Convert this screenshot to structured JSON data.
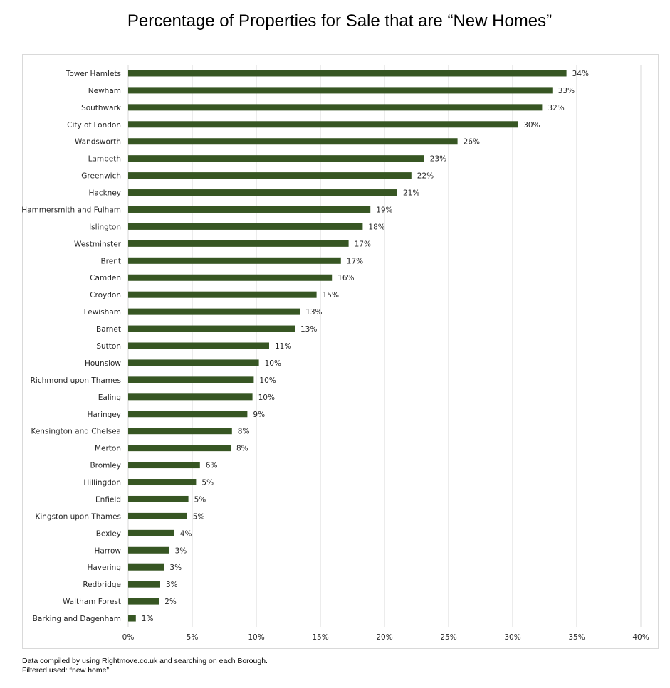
{
  "chart_data": {
    "type": "bar",
    "orientation": "horizontal",
    "title": "Percentage of Properties for Sale that are “New Homes”",
    "xlabel": "",
    "ylabel": "",
    "categories": [
      "Tower Hamlets",
      "Newham",
      "Southwark",
      "City of London",
      "Wandsworth",
      "Lambeth",
      "Greenwich",
      "Hackney",
      "Hammersmith and Fulham",
      "Islington",
      "Westminster",
      "Brent",
      "Camden",
      "Croydon",
      "Lewisham",
      "Barnet",
      "Sutton",
      "Hounslow",
      "Richmond upon Thames",
      "Ealing",
      "Haringey",
      "Kensington and Chelsea",
      "Merton",
      "Bromley",
      "Hillingdon",
      "Enfield",
      "Kingston upon Thames",
      "Bexley",
      "Harrow",
      "Havering",
      "Redbridge",
      "Waltham Forest",
      "Barking and Dagenham"
    ],
    "values": [
      34.2,
      33.1,
      32.3,
      30.4,
      25.7,
      23.1,
      22.1,
      21.0,
      18.9,
      18.3,
      17.2,
      16.6,
      15.9,
      14.7,
      13.4,
      13.0,
      11.0,
      10.2,
      9.8,
      9.7,
      9.3,
      8.1,
      8.0,
      5.6,
      5.3,
      4.7,
      4.6,
      3.6,
      3.2,
      2.8,
      2.5,
      2.4,
      0.6
    ],
    "value_labels": [
      "34%",
      "33%",
      "32%",
      "30%",
      "26%",
      "23%",
      "22%",
      "21%",
      "19%",
      "18%",
      "17%",
      "17%",
      "16%",
      "15%",
      "13%",
      "13%",
      "11%",
      "10%",
      "10%",
      "10%",
      "9%",
      "8%",
      "8%",
      "6%",
      "5%",
      "5%",
      "5%",
      "4%",
      "3%",
      "3%",
      "3%",
      "2%",
      "1%"
    ],
    "xlim": [
      0,
      40
    ],
    "x_ticks": [
      0,
      5,
      10,
      15,
      20,
      25,
      30,
      35,
      40
    ],
    "x_tick_labels": [
      "0%",
      "5%",
      "10%",
      "15%",
      "20%",
      "25%",
      "30%",
      "35%",
      "40%"
    ],
    "grid": "vertical",
    "legend": "none",
    "bar_color": "#375623"
  },
  "footnote": {
    "line1": "Data compiled by using Rightmove.co.uk and searching on each Borough.",
    "line2": "Filtered used: “new home”."
  }
}
